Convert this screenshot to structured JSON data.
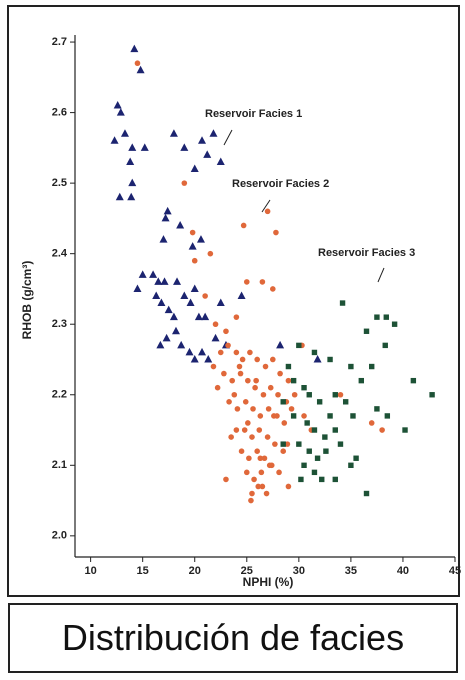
{
  "chart_data": {
    "type": "scatter",
    "x_label": "NPHI (%)",
    "y_label": "RHOB (g/cm³)",
    "xlim": [
      8.5,
      45
    ],
    "ylim": [
      1.97,
      2.71
    ],
    "xticks": [
      10,
      15,
      20,
      25,
      30,
      35,
      40,
      45
    ],
    "yticks": [
      {
        "value": 2,
        "label": "2.0"
      },
      2.1,
      2.2,
      2.3,
      2.4,
      2.5,
      2.6,
      2.7
    ],
    "annotations": [
      "Reservoir Facies 1",
      "Reservoir Facies 2",
      "Reservoir Facies 3"
    ],
    "caption": "Distribución de facies",
    "series": [
      {
        "marker": "triangle",
        "color": "#1c2470",
        "x": [
          14.2,
          14.8,
          12.6,
          12.9,
          12.3,
          13.3,
          14.0,
          15.2,
          13.8,
          12.8,
          13.9,
          14.0,
          18.0,
          20.7,
          21.2,
          21.8,
          22.5,
          19.0,
          20.0,
          17.4,
          17.2,
          17.0,
          18.6,
          19.8,
          20.6,
          14.5,
          15.0,
          16.0,
          16.5,
          17.1,
          18.3,
          16.3,
          16.8,
          17.5,
          18.0,
          19.0,
          19.6,
          20.0,
          20.4,
          21.0,
          16.7,
          17.3,
          18.2,
          18.7,
          19.5,
          20.0,
          20.7,
          21.3,
          22.5,
          24.5,
          22.0,
          23.0,
          31.8,
          28.2
        ],
        "y": [
          2.69,
          2.66,
          2.61,
          2.6,
          2.56,
          2.57,
          2.55,
          2.55,
          2.53,
          2.48,
          2.48,
          2.5,
          2.57,
          2.56,
          2.54,
          2.57,
          2.53,
          2.55,
          2.52,
          2.46,
          2.45,
          2.42,
          2.44,
          2.41,
          2.42,
          2.35,
          2.37,
          2.37,
          2.36,
          2.36,
          2.36,
          2.34,
          2.33,
          2.32,
          2.31,
          2.34,
          2.33,
          2.35,
          2.31,
          2.31,
          2.27,
          2.28,
          2.29,
          2.27,
          2.26,
          2.25,
          2.26,
          2.25,
          2.33,
          2.34,
          2.28,
          2.27,
          2.25,
          2.27
        ]
      },
      {
        "marker": "circle",
        "color": "#e0683a",
        "x": [
          14.5,
          19,
          24.7,
          27,
          27.8,
          19.8,
          20,
          21.5,
          26.5,
          25,
          27.5,
          21,
          22,
          23,
          24,
          30.3,
          34,
          37,
          38,
          25.5,
          26.5,
          29,
          23,
          22.5,
          23.2,
          24,
          24.6,
          25.3,
          26,
          26.8,
          27.5,
          28.2,
          29,
          22.8,
          23.6,
          24.4,
          25.1,
          25.8,
          26.6,
          27.3,
          28,
          28.8,
          29.6,
          23.3,
          24.1,
          24.9,
          25.6,
          26.3,
          27.1,
          27.9,
          28.6,
          24,
          24.8,
          25.5,
          26.2,
          27,
          27.7,
          28.5,
          24.5,
          25.2,
          26,
          26.7,
          27.4,
          28.1,
          25,
          25.7,
          26.4,
          27.2,
          25.4,
          26.1,
          26.9,
          23.8,
          29.3,
          30.5,
          31.2,
          21.8,
          22.2,
          24.3,
          25.9,
          27.6,
          28.9,
          26.3,
          25.1,
          23.5
        ],
        "y": [
          2.67,
          2.5,
          2.44,
          2.46,
          2.43,
          2.43,
          2.39,
          2.4,
          2.36,
          2.36,
          2.35,
          2.34,
          2.3,
          2.29,
          2.31,
          2.27,
          2.2,
          2.16,
          2.15,
          2.06,
          2.07,
          2.07,
          2.08,
          2.26,
          2.27,
          2.26,
          2.25,
          2.26,
          2.25,
          2.24,
          2.25,
          2.23,
          2.22,
          2.23,
          2.22,
          2.23,
          2.22,
          2.21,
          2.2,
          2.21,
          2.2,
          2.19,
          2.2,
          2.19,
          2.18,
          2.19,
          2.18,
          2.17,
          2.18,
          2.17,
          2.16,
          2.15,
          2.15,
          2.14,
          2.15,
          2.14,
          2.13,
          2.12,
          2.12,
          2.11,
          2.12,
          2.11,
          2.1,
          2.09,
          2.09,
          2.08,
          2.09,
          2.1,
          2.05,
          2.07,
          2.06,
          2.2,
          2.18,
          2.17,
          2.15,
          2.24,
          2.21,
          2.24,
          2.22,
          2.17,
          2.13,
          2.11,
          2.16,
          2.14
        ]
      },
      {
        "marker": "square",
        "color": "#1d5236",
        "x": [
          34.2,
          37.5,
          38.4,
          39.2,
          36.5,
          38.3,
          37,
          41,
          42.8,
          40.2,
          30,
          31.5,
          33,
          35,
          36,
          29.5,
          30.5,
          31,
          32,
          33.5,
          34.5,
          35.2,
          37.5,
          28.5,
          29.5,
          30.8,
          31.5,
          32.5,
          33.5,
          34,
          35.5,
          30,
          31,
          31.8,
          32.6,
          30.5,
          31.5,
          32.2,
          30.2,
          33.5,
          35,
          36.5,
          33,
          29,
          28.5,
          38.5
        ],
        "y": [
          2.33,
          2.31,
          2.31,
          2.3,
          2.29,
          2.27,
          2.24,
          2.22,
          2.2,
          2.15,
          2.27,
          2.26,
          2.25,
          2.24,
          2.22,
          2.22,
          2.21,
          2.2,
          2.19,
          2.2,
          2.19,
          2.17,
          2.18,
          2.19,
          2.17,
          2.16,
          2.15,
          2.14,
          2.15,
          2.13,
          2.11,
          2.13,
          2.12,
          2.11,
          2.12,
          2.1,
          2.09,
          2.08,
          2.08,
          2.08,
          2.1,
          2.06,
          2.17,
          2.24,
          2.13,
          2.17
        ]
      }
    ]
  }
}
